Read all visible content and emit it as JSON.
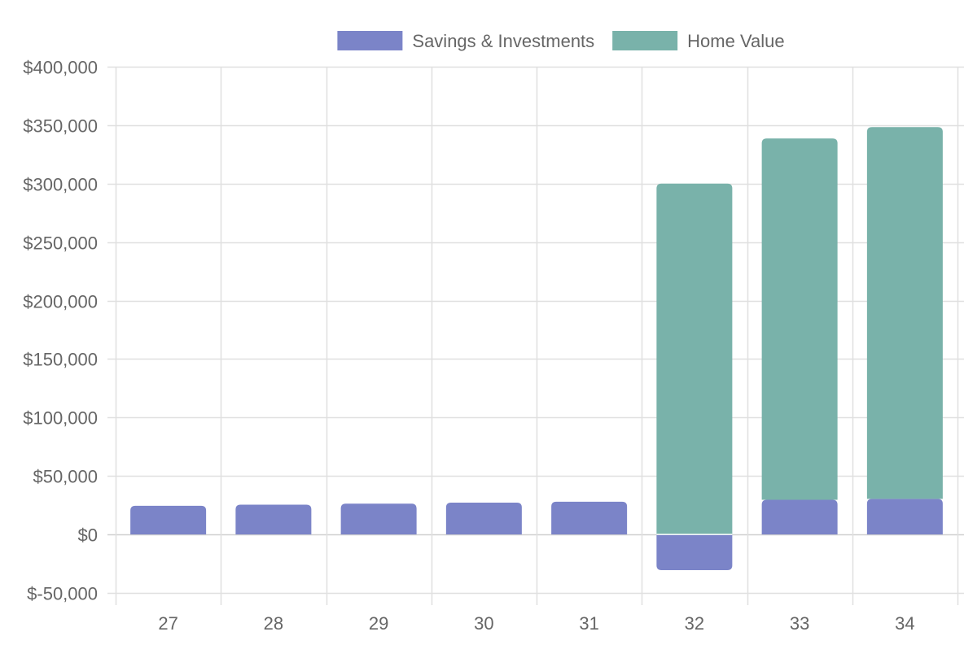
{
  "chart_data": {
    "type": "bar",
    "stacked": true,
    "title": "",
    "xlabel": "",
    "ylabel": "",
    "categories": [
      "27",
      "28",
      "29",
      "30",
      "31",
      "32",
      "33",
      "34"
    ],
    "series": [
      {
        "name": "Savings & Investments",
        "color": "#7b84c8",
        "values": [
          24500,
          25500,
          26300,
          27200,
          28000,
          -30500,
          29600,
          30400
        ]
      },
      {
        "name": "Home Value",
        "color": "#79b2aa",
        "values": [
          0,
          0,
          0,
          0,
          0,
          300000,
          309000,
          318000
        ]
      }
    ],
    "ylim": [
      -50000,
      400000
    ],
    "y_ticks": [
      400000,
      350000,
      300000,
      250000,
      200000,
      150000,
      100000,
      50000,
      0,
      -50000
    ],
    "y_tick_labels": [
      "$400,000",
      "$350,000",
      "$300,000",
      "$250,000",
      "$200,000",
      "$150,000",
      "$100,000",
      "$50,000",
      "$0",
      "$-50,000"
    ],
    "grid": true,
    "legend_position": "top"
  },
  "style": {
    "grid_color": "#e0e0e0",
    "zero_line_color": "#d0d0d0",
    "tick_text_color": "#666666"
  }
}
